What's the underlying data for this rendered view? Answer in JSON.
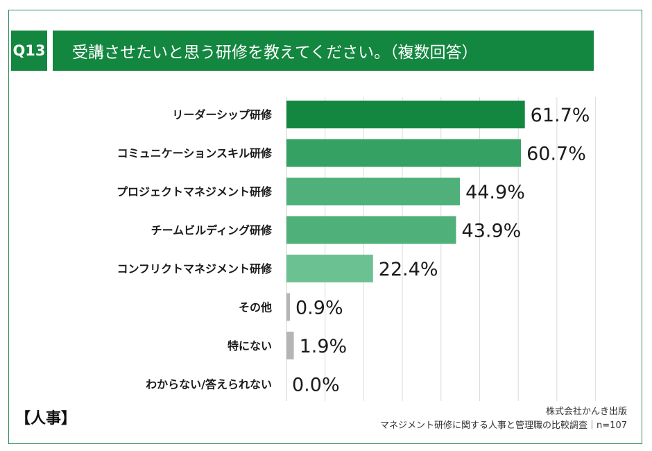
{
  "header": {
    "question_no": "Q13",
    "title": "受講させたいと思う研修を教えてください。（複数回答）"
  },
  "chart_data": {
    "type": "bar",
    "orientation": "horizontal",
    "categories": [
      "リーダーシップ研修",
      "コミュニケーションスキル研修",
      "プロジェクトマネジメント研修",
      "チームビルディング研修",
      "コンフリクトマネジメント研修",
      "その他",
      "特にない",
      "わからない/答えられない"
    ],
    "values": [
      61.7,
      60.7,
      44.9,
      43.9,
      22.4,
      0.9,
      1.9,
      0.0
    ],
    "labels": [
      "61.7%",
      "60.7%",
      "44.9%",
      "43.9%",
      "22.4%",
      "0.9%",
      "1.9%",
      "0.0%"
    ],
    "bar_colors": [
      "#13863f",
      "#35a264",
      "#4fb07a",
      "#4fb07a",
      "#6cc193",
      "#b5b5b5",
      "#b5b5b5",
      "#b5b5b5"
    ],
    "xlim": [
      0,
      100
    ],
    "grid": true,
    "legend": "none"
  },
  "footer": {
    "tag": "【人事】",
    "source_line1": "株式会社かんき出版",
    "source_line2": "マネジメント研修に関する人事と管理職の比較調査｜n=107"
  }
}
